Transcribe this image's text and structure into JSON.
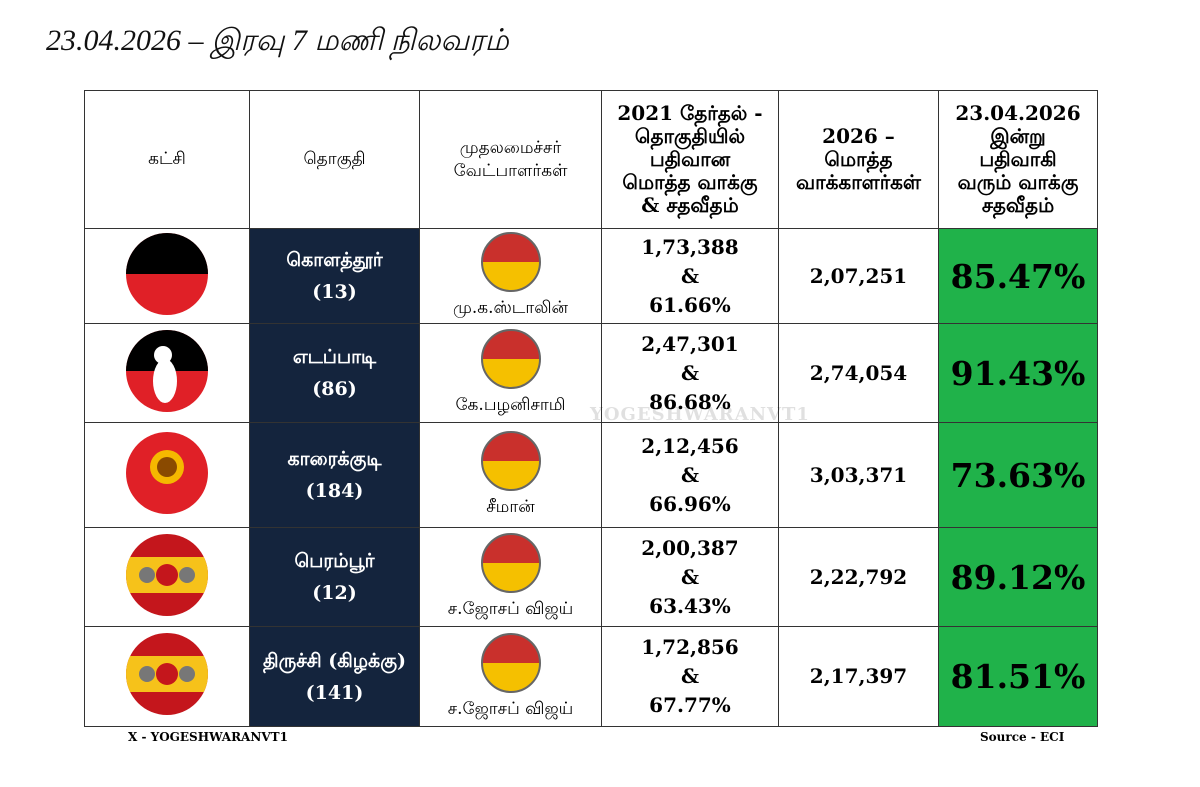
{
  "title": "23.04.2026 – இரவு 7 மணி நிலவரம்",
  "table": {
    "headers": [
      [
        "கட்சி"
      ],
      [
        "தொகுதி"
      ],
      [
        "முதலமைச்சர்",
        "வேட்பாளர்கள்"
      ],
      [
        "2021 தேர்தல் -",
        "தொகுதியில்",
        "பதிவான",
        "மொத்த வாக்கு",
        "& சதவீதம்"
      ],
      [
        "2026 –",
        "மொத்த",
        "வாக்காளர்கள்"
      ],
      [
        "23.04.2026",
        "இன்று",
        "பதிவாகி",
        "வரும் வாக்கு",
        "சதவீதம்"
      ]
    ],
    "rows": [
      {
        "constituency": "கொளத்தூர்",
        "number": "(13)",
        "candidate": "மு.க.ஸ்டாலின்",
        "votes_2021": "1,73,388",
        "joiner": "&",
        "percent_2021": "61.66%",
        "electors_2026": "2,07,251",
        "turnout": "85.47%"
      },
      {
        "constituency": "எடப்பாடி",
        "number": "(86)",
        "candidate": "கே.பழனிசாமி",
        "votes_2021": "2,47,301",
        "joiner": "&",
        "percent_2021": "86.68%",
        "electors_2026": "2,74,054",
        "turnout": "91.43%"
      },
      {
        "constituency": "காரைக்குடி",
        "number": "(184)",
        "candidate": "சீமான்",
        "votes_2021": "2,12,456",
        "joiner": "&",
        "percent_2021": "66.96%",
        "electors_2026": "3,03,371",
        "turnout": "73.63%"
      },
      {
        "constituency": "பெரம்பூர்",
        "number": "(12)",
        "candidate": "ச.ஜோசப் விஜய்",
        "votes_2021": "2,00,387",
        "joiner": "&",
        "percent_2021": "63.43%",
        "electors_2026": "2,22,792",
        "turnout": "89.12%"
      },
      {
        "constituency": "திருச்சி (கிழக்கு)",
        "number": "(141)",
        "candidate": "ச.ஜோசப் விஜய்",
        "votes_2021": "1,72,856",
        "joiner": "&",
        "percent_2021": "67.77%",
        "electors_2026": "2,17,397",
        "turnout": "81.51%"
      }
    ]
  },
  "watermark": "YOGESHWARANVT1",
  "footer": {
    "credit": "X - YOGESHWARANVT1",
    "source": "Source - ECI"
  }
}
